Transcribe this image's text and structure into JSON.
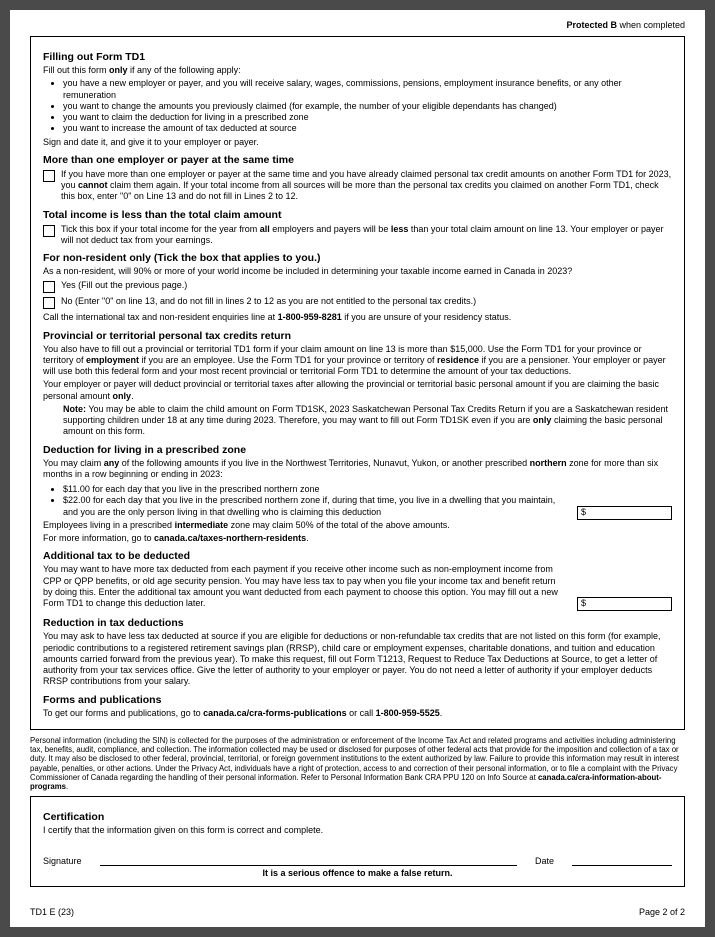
{
  "header": {
    "protected": "Protected B",
    "when": " when completed"
  },
  "s1": {
    "title": "Filling out Form TD1",
    "intro": "Fill out this form only if any of the following apply:",
    "only": "only",
    "b1": "you have a new employer or payer, and you will receive salary, wages, commissions, pensions, employment insurance benefits, or any other remuneration",
    "b2": "you want to change the amounts you previously claimed (for example, the number of your eligible dependants has changed)",
    "b3": "you want to claim the deduction for living in a prescribed zone",
    "b4": "you want to increase the amount of tax deducted at source",
    "outro": "Sign and date it, and give it to your employer or payer."
  },
  "s2": {
    "title": "More than one employer or payer at the same time",
    "cb_a": "If you have more than one employer or payer at the same time and you have already claimed personal tax credit amounts on another Form TD1 for 2023, you ",
    "cb_b": "cannot",
    "cb_c": " claim them again. If your total income from all sources will be more than the personal tax credits you claimed on another Form TD1, check this box, enter \"0\" on Line 13 and do not fill in Lines 2 to 12."
  },
  "s3": {
    "title": "Total income is less than the total claim amount",
    "cb_a": "Tick this box if your total income for the year from ",
    "cb_b": "all",
    "cb_c": " employers and payers will be ",
    "cb_d": "less",
    "cb_e": " than your total claim amount on line 13. Your employer or payer will not deduct tax from your earnings."
  },
  "s4": {
    "title": "For non-resident only (Tick the box that applies to you.)",
    "p1": "As a non-resident, will 90% or more of your world income be included in determining your taxable income earned in Canada in 2023?",
    "yes": "Yes (Fill out the previous page.)",
    "no": "No (Enter \"0\" on line 13, and do not fill in lines 2 to 12 as you are not entitled to the personal tax credits.)",
    "call_a": "Call the international tax and non-resident enquiries line at ",
    "call_b": "1-800-959-8281",
    "call_c": " if you are unsure of your residency status."
  },
  "s5": {
    "title": "Provincial or territorial personal tax credits return",
    "p1_a": "You also have to fill out a provincial or territorial TD1 form if your claim amount on line 13 is more than $15,000. Use the Form TD1 for your province or territory of ",
    "p1_b": "employment",
    "p1_c": " if you are an employee. Use the Form TD1 for your province or territory of ",
    "p1_d": "residence",
    "p1_e": " if you are a pensioner. Your employer or payer will use both this federal form and your most recent provincial or territorial Form TD1 to determine the amount of your tax deductions.",
    "p2_a": "Your employer or payer will deduct provincial or territorial taxes after allowing the provincial or territorial basic personal amount if you are claiming the basic personal amount ",
    "p2_b": "only",
    "p2_c": ".",
    "note_label": "Note:",
    "note_a": " You may be able to claim the child amount on Form TD1SK, 2023 Saskatchewan Personal Tax Credits Return if you are a Saskatchewan resident supporting children under 18 at any time during 2023. Therefore, you may want to fill out Form TD1SK even if you are ",
    "note_b": "only",
    "note_c": " claiming the basic personal amount on this form."
  },
  "s6": {
    "title": "Deduction for living in a prescribed zone",
    "p1_a": "You may claim ",
    "p1_b": "any",
    "p1_c": " of the following amounts if you live in the Northwest Territories, Nunavut, Yukon, or another prescribed ",
    "p1_d": "northern",
    "p1_e": " zone for more than six months in a row beginning or ending in 2023:",
    "b1": "$11.00 for each day that you live in the prescribed northern zone",
    "b2": "$22.00 for each day that you live in the prescribed northern zone if, during that time, you live in a dwelling that you maintain, and you are the only person living in that dwelling who is claiming this deduction",
    "p2_a": "Employees living in a prescribed ",
    "p2_b": "intermediate",
    "p2_c": " zone may claim 50% of the total of the above amounts.",
    "p3_a": "For more information, go to ",
    "p3_b": "canada.ca/taxes-northern-residents",
    "p3_c": ".",
    "dollar": "$"
  },
  "s7": {
    "title": "Additional tax to be deducted",
    "p1": "You may want to have more tax deducted from each payment if you receive other income such as non-employment income from CPP or QPP benefits, or old age security pension. You may have less tax to pay when you file your income tax and benefit return by doing this. Enter the additional tax amount you want deducted from each payment to choose this option. You may fill out a new Form TD1 to change this deduction later.",
    "dollar": "$"
  },
  "s8": {
    "title": "Reduction in tax deductions",
    "p1": "You may ask to have less tax deducted at source if you are eligible for deductions or non-refundable tax credits that are not listed on this form (for example, periodic contributions to a registered retirement savings plan (RRSP), child care or employment expenses, charitable donations, and tuition and education amounts carried forward from the previous year). To make this request, fill out Form T1213, Request to Reduce Tax Deductions at Source, to get a letter of authority from your tax services office. Give the letter of authority to your employer or payer. You do not need a letter of authority if your employer deducts RRSP contributions from your salary."
  },
  "s9": {
    "title": "Forms and publications",
    "p1_a": "To get our forms and publications, go to ",
    "p1_b": "canada.ca/cra-forms-publications",
    "p1_c": " or call ",
    "p1_d": "1-800-959-5525",
    "p1_e": "."
  },
  "privacy_a": "Personal information (including the SIN) is collected for the purposes of the administration or enforcement of the Income Tax Act and related programs and activities including administering tax, benefits, audit, compliance, and collection. The information collected may be used or disclosed for purposes of other federal acts that provide for the imposition and collection of a tax or duty. It may also be disclosed to other federal, provincial, territorial, or foreign government institutions to the extent authorized by law. Failure to provide this information may result in interest payable, penalties, or other actions. Under the Privacy Act, individuals have a right of protection, access to and correction of their personal information, or to file a complaint with the Privacy Commissioner of Canada regarding the handling of their personal information. Refer to Personal Information Bank CRA PPU 120 on Info Source at ",
  "privacy_b": "canada.ca/cra-information-about-programs",
  "privacy_c": ".",
  "cert": {
    "title": "Certification",
    "p1": "I certify that the information given on this form is correct and complete.",
    "sig": "Signature",
    "date": "Date",
    "offence": "It is a serious offence to make a false return."
  },
  "footer": {
    "left": "TD1 E (23)",
    "right": "Page 2 of 2"
  }
}
